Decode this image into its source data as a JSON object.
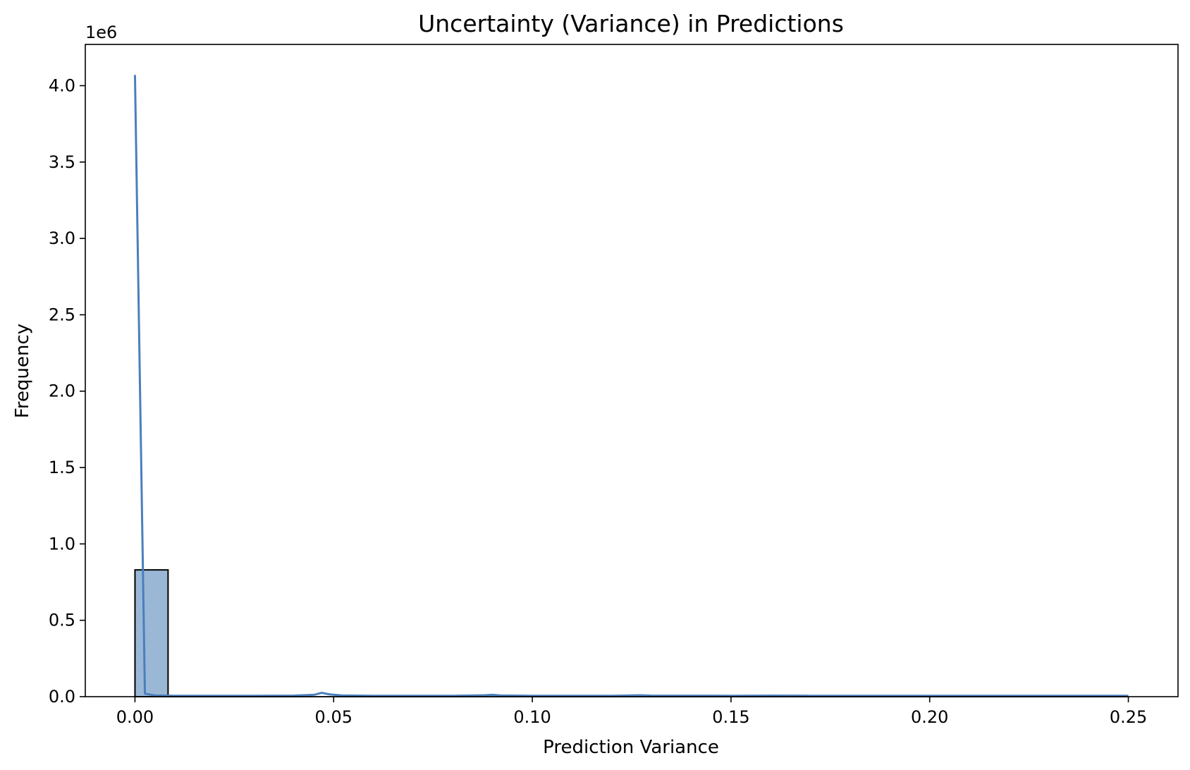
{
  "chart_data": {
    "type": "bar",
    "title": "Uncertainty (Variance) in Predictions",
    "xlabel": "Prediction Variance",
    "ylabel": "Frequency",
    "y_offset_label": "1e6",
    "xlim": [
      -0.0125,
      0.2625
    ],
    "ylim": [
      0,
      4.27
    ],
    "x_ticks": [
      {
        "value": 0.0,
        "label": "0.00"
      },
      {
        "value": 0.05,
        "label": "0.05"
      },
      {
        "value": 0.1,
        "label": "0.10"
      },
      {
        "value": 0.15,
        "label": "0.15"
      },
      {
        "value": 0.2,
        "label": "0.20"
      },
      {
        "value": 0.25,
        "label": "0.25"
      }
    ],
    "y_ticks": [
      {
        "value": 0.0,
        "label": "0.0"
      },
      {
        "value": 0.5,
        "label": "0.5"
      },
      {
        "value": 1.0,
        "label": "1.0"
      },
      {
        "value": 1.5,
        "label": "1.5"
      },
      {
        "value": 2.0,
        "label": "2.0"
      },
      {
        "value": 2.5,
        "label": "2.5"
      },
      {
        "value": 3.0,
        "label": "3.0"
      },
      {
        "value": 3.5,
        "label": "3.5"
      },
      {
        "value": 4.0,
        "label": "4.0"
      }
    ],
    "histogram": {
      "bin_edges": [
        0.0,
        0.00833,
        0.01667,
        0.025,
        0.03333,
        0.04167,
        0.05,
        0.05833,
        0.06667,
        0.075,
        0.08333,
        0.09167,
        0.1,
        0.10833,
        0.11667,
        0.125,
        0.13333,
        0.14167,
        0.15,
        0.15833,
        0.16667,
        0.175,
        0.18333,
        0.19167,
        0.2,
        0.20833,
        0.21667,
        0.225,
        0.23333,
        0.24167,
        0.25
      ],
      "counts": [
        0.83,
        0.0005,
        0.0005,
        0.0005,
        0.0005,
        0.0008,
        0.0006,
        0.0005,
        0.0005,
        0.0005,
        0.0005,
        0.0006,
        0.0005,
        0.0005,
        0.0005,
        0.0005,
        0.0005,
        0.0005,
        0.0005,
        0.0005,
        0.0005,
        0.0005,
        0.0005,
        0.0005,
        0.0005,
        0.0005,
        0.0005,
        0.0005,
        0.0005,
        0.0005
      ]
    },
    "kde": {
      "x": [
        0.0,
        0.0025,
        0.005,
        0.01,
        0.02,
        0.03,
        0.04,
        0.045,
        0.047,
        0.049,
        0.052,
        0.06,
        0.08,
        0.088,
        0.09,
        0.092,
        0.1,
        0.12,
        0.127,
        0.13,
        0.15,
        0.16,
        0.17,
        0.19,
        0.2,
        0.22,
        0.25
      ],
      "y": [
        4.07,
        0.02,
        0.008,
        0.006,
        0.006,
        0.006,
        0.007,
        0.012,
        0.025,
        0.015,
        0.008,
        0.006,
        0.006,
        0.009,
        0.012,
        0.008,
        0.006,
        0.006,
        0.009,
        0.007,
        0.006,
        0.007,
        0.006,
        0.006,
        0.006,
        0.006,
        0.006
      ]
    },
    "colors": {
      "bar_fill": "#9ab8d6",
      "bar_edge": "#000000",
      "kde_line": "#4a7fbd"
    },
    "grid": false,
    "legend": "none"
  }
}
